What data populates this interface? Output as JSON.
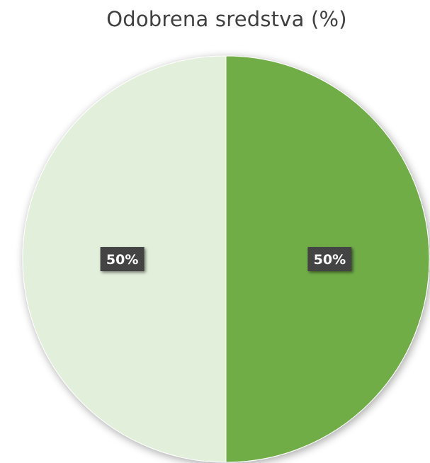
{
  "chart_data": {
    "type": "pie",
    "title": "Odobrena sredstva (%)",
    "categories": [
      "",
      ""
    ],
    "values": [
      50,
      50
    ],
    "data_labels": [
      "50%",
      "50%"
    ],
    "colors": [
      "#70AD47",
      "#E2EFDA"
    ],
    "label_box_color": "#3F3F3F",
    "legend": "none",
    "start_angle_deg": 0,
    "direction": "clockwise"
  }
}
